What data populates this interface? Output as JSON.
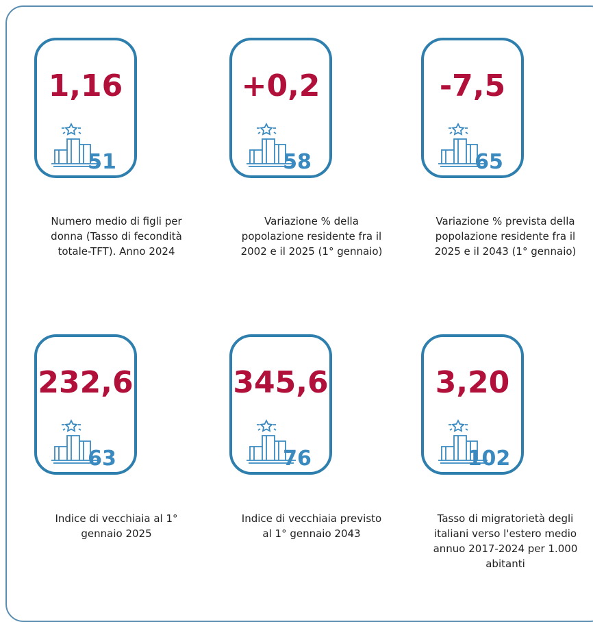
{
  "cards": [
    {
      "value": "1,16",
      "rank": "51",
      "description": "Numero medio di figli per donna (Tasso di fecondità totale-TFT). Anno 2024"
    },
    {
      "value": "+0,2",
      "rank": "58",
      "description": "Variazione % della popolazione residente fra il 2002 e il 2025 (1° gennaio)"
    },
    {
      "value": "-7,5",
      "rank": "65",
      "description": "Variazione % prevista della popolazione residente fra il 2025 e il 2043 (1° gennaio)"
    },
    {
      "value": "232,6",
      "rank": "63",
      "description": "Indice di vecchiaia al 1° gennaio 2025"
    },
    {
      "value": "345,6",
      "rank": "76",
      "description": "Indice di vecchiaia previsto al 1° gennaio 2043"
    },
    {
      "value": "3,20",
      "rank": "102",
      "description": "Tasso di migratorietà degli italiani verso l'estero medio annuo 2017-2024 per 1.000 abitanti"
    }
  ]
}
